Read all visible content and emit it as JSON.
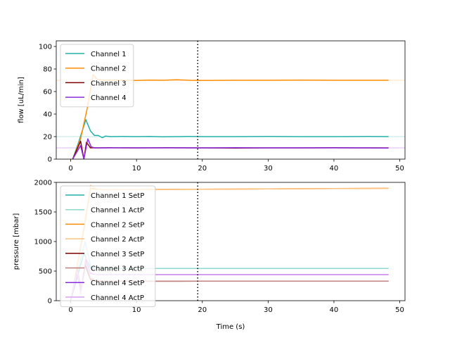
{
  "chart_data": [
    {
      "type": "line",
      "ylabel": "flow [uL/min]",
      "xlim": [
        -2.2,
        50.8
      ],
      "ylim": [
        0,
        105
      ],
      "xticks": [
        0,
        10,
        20,
        30,
        40,
        50
      ],
      "yticks": [
        0,
        20,
        40,
        60,
        80,
        100
      ],
      "vline_x": 19.3,
      "legend_position": "upper left",
      "hlines": [
        {
          "y": 70,
          "color": "#ffe4b3"
        },
        {
          "y": 20,
          "color": "#bfe6e2"
        },
        {
          "y": 10,
          "color": "#e2b8f0"
        }
      ],
      "series": [
        {
          "name": "Channel 1",
          "color": "#20b2aa",
          "x": [
            0,
            1.2,
            2.3,
            3.0,
            3.6,
            4.2,
            4.8,
            5.3,
            6,
            8,
            10,
            12,
            14,
            16,
            18,
            20,
            25,
            30,
            35,
            40,
            45,
            48.3
          ],
          "y": [
            -5,
            15,
            35,
            25,
            21,
            21,
            19,
            20.5,
            20,
            20.1,
            20,
            20.2,
            19.9,
            20,
            20.1,
            20,
            20,
            20.1,
            20,
            20,
            20.1,
            20
          ]
        },
        {
          "name": "Channel 2",
          "color": "#ff8c00",
          "x": [
            0,
            1.5,
            2.5,
            3.4,
            4.0,
            4.6,
            6,
            8,
            10,
            12,
            14,
            16,
            18,
            20,
            25,
            30,
            35,
            40,
            45,
            48.3
          ],
          "y": [
            -5,
            18,
            45,
            75,
            71,
            70,
            70.2,
            70,
            69.9,
            70.1,
            70,
            70.5,
            70,
            69.8,
            70,
            70,
            70.1,
            70,
            70,
            70
          ]
        },
        {
          "name": "Channel 3",
          "color": "#800000",
          "x": [
            0,
            1.5,
            2.0,
            2.4,
            3.0,
            3.5,
            4,
            6,
            8,
            10,
            15,
            20,
            25,
            30,
            35,
            40,
            45,
            48.3
          ],
          "y": [
            -4,
            16,
            0,
            15,
            10,
            10.2,
            10,
            10.1,
            10,
            10,
            10.1,
            10,
            9.9,
            10,
            10,
            10.1,
            10,
            10
          ]
        },
        {
          "name": "Channel 4",
          "color": "#8a2be2",
          "x": [
            0,
            1.5,
            2.0,
            2.6,
            3.1,
            3.6,
            4,
            6,
            8,
            10,
            15,
            20,
            25,
            30,
            35,
            40,
            45,
            48.3
          ],
          "y": [
            -3,
            12,
            0,
            18,
            11,
            10,
            10,
            10,
            10.1,
            10,
            10,
            10,
            10.1,
            10,
            10,
            10,
            10,
            9.9
          ]
        }
      ]
    },
    {
      "type": "line",
      "xlabel": "Time (s)",
      "ylabel": "pressure [mbar]",
      "xlim": [
        -2.2,
        50.8
      ],
      "ylim": [
        0,
        2000
      ],
      "xticks": [
        0,
        10,
        20,
        30,
        40,
        50
      ],
      "yticks": [
        0,
        500,
        1000,
        1500,
        2000
      ],
      "vline_x": 19.3,
      "legend_position": "upper left",
      "series": [
        {
          "name": "Channel 1 SetP",
          "color": "#20b2aa",
          "x": [
            0,
            2,
            3,
            5,
            10,
            20,
            30,
            40,
            48.3
          ],
          "y": [
            0,
            800,
            560,
            545,
            545,
            545,
            545,
            545,
            545
          ]
        },
        {
          "name": "Channel 1 ActP",
          "color": "#8fd8d2",
          "x": [
            0,
            1.5,
            2.2,
            3,
            4,
            6,
            10,
            20,
            30,
            40,
            48.3
          ],
          "y": [
            0,
            700,
            1000,
            600,
            550,
            546,
            545,
            545,
            545,
            545,
            545
          ]
        },
        {
          "name": "Channel 2 SetP",
          "color": "#ff8c00",
          "x": [
            0,
            2,
            3,
            4,
            6,
            10,
            20,
            30,
            40,
            48.3
          ],
          "y": [
            0,
            1200,
            1900,
            1880,
            1875,
            1880,
            1885,
            1890,
            1895,
            1900
          ]
        },
        {
          "name": "Channel 2 ActP",
          "color": "#ffc080",
          "x": [
            0,
            2,
            3,
            4,
            6,
            10,
            20,
            30,
            40,
            48.3
          ],
          "y": [
            0,
            1250,
            1950,
            1885,
            1876,
            1880,
            1885,
            1890,
            1895,
            1900
          ]
        },
        {
          "name": "Channel 3 SetP",
          "color": "#800000",
          "x": [
            0,
            1,
            1.6,
            2.2,
            3,
            4,
            6,
            10,
            20,
            30,
            40,
            48.3
          ],
          "y": [
            0,
            500,
            200,
            600,
            360,
            330,
            330,
            328,
            330,
            330,
            330,
            330
          ]
        },
        {
          "name": "Channel 3 ActP",
          "color": "#c08080",
          "x": [
            0,
            1,
            1.6,
            2.2,
            3,
            4,
            6,
            10,
            20,
            30,
            40,
            48.3
          ],
          "y": [
            0,
            550,
            180,
            650,
            380,
            335,
            330,
            330,
            330,
            330,
            330,
            330
          ]
        },
        {
          "name": "Channel 4 SetP",
          "color": "#8a2be2",
          "x": [
            0,
            1,
            1.5,
            2.3,
            3,
            4,
            6,
            10,
            20,
            30,
            40,
            48.3
          ],
          "y": [
            0,
            450,
            150,
            700,
            460,
            440,
            440,
            440,
            440,
            440,
            440,
            440
          ]
        },
        {
          "name": "Channel 4 ActP",
          "color": "#d9a0f0",
          "x": [
            0,
            1,
            1.5,
            2.3,
            3,
            4,
            6,
            10,
            20,
            30,
            40,
            48.3
          ],
          "y": [
            0,
            500,
            120,
            750,
            470,
            442,
            440,
            440,
            440,
            440,
            440,
            440
          ]
        }
      ]
    }
  ]
}
